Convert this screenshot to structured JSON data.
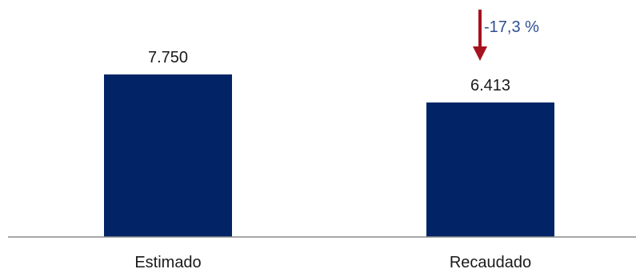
{
  "chart_data": {
    "type": "bar",
    "categories": [
      "Estimado",
      "Recaudado"
    ],
    "values": [
      7750,
      6413
    ],
    "value_labels": [
      "7.750",
      "6.413"
    ],
    "ylim": [
      0,
      8000
    ],
    "grid": false,
    "legend": "none",
    "colors": {
      "bar": "#022466",
      "axis": "#8c8c8c",
      "arrow": "#a6121f",
      "annotation_text": "#2f4f8f"
    },
    "annotation": {
      "text": "-17,3 %",
      "target_category": "Recaudado",
      "icon": "arrow-down-icon"
    }
  }
}
